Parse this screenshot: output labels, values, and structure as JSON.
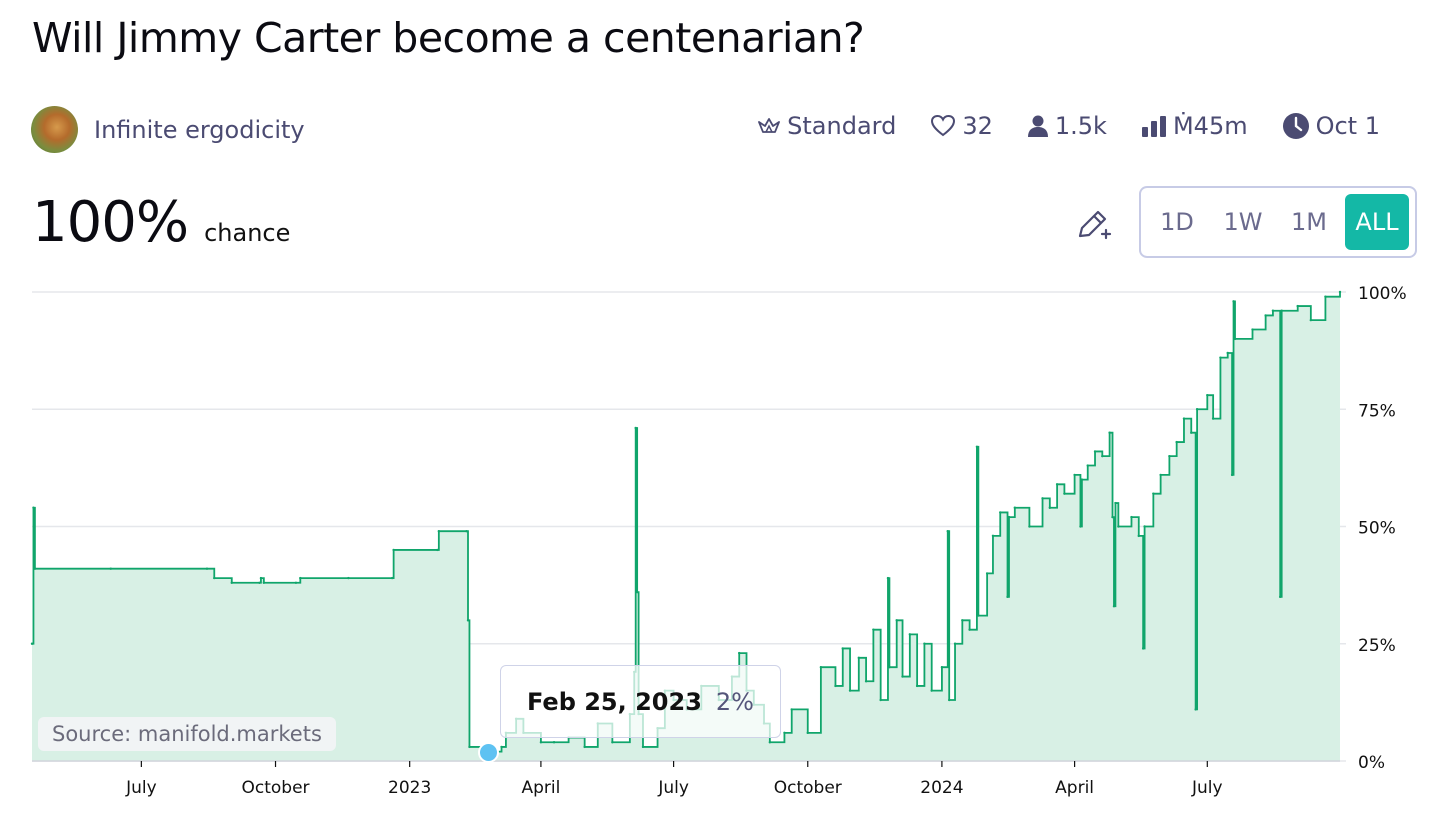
{
  "title": "Will Jimmy Carter become a centenarian?",
  "creator": {
    "name": "Infinite ergodicity",
    "avatar_icon": "dog-avatar"
  },
  "stats": {
    "market_type": "Standard",
    "likes": "32",
    "traders": "1.5k",
    "volume": "Ṁ45m",
    "close_date": "Oct 1"
  },
  "probability": {
    "value": "100%",
    "label": "chance"
  },
  "time_ranges": [
    "1D",
    "1W",
    "1M",
    "ALL"
  ],
  "active_range": "ALL",
  "source": "Source: manifold.markets",
  "tooltip": {
    "date": "Feb 25, 2023",
    "value": "2%"
  },
  "colors": {
    "line": "#10a56b",
    "fill": "#d8f0e5",
    "accent": "#14b8a6",
    "hover_dot": "#5ec2f2",
    "grid": "#e5e7eb"
  },
  "chart_data": {
    "type": "area",
    "x_unit": "date",
    "x_range": [
      "2022-04-17",
      "2024-09-30"
    ],
    "ylim": [
      0,
      100
    ],
    "y_ticks": [
      0,
      25,
      50,
      75,
      100
    ],
    "y_tick_labels": [
      "0%",
      "25%",
      "50%",
      "75%",
      "100%"
    ],
    "x_ticks": [
      {
        "label": "July",
        "date": "2022-07-01"
      },
      {
        "label": "October",
        "date": "2022-10-01"
      },
      {
        "label": "2023",
        "date": "2023-01-01"
      },
      {
        "label": "April",
        "date": "2023-04-01"
      },
      {
        "label": "July",
        "date": "2023-07-01"
      },
      {
        "label": "October",
        "date": "2023-10-01"
      },
      {
        "label": "2024",
        "date": "2024-01-01"
      },
      {
        "label": "April",
        "date": "2024-04-01"
      },
      {
        "label": "July",
        "date": "2024-07-01"
      }
    ],
    "grid": true,
    "step": true,
    "points": [
      [
        "2022-04-17",
        25
      ],
      [
        "2022-04-18",
        54
      ],
      [
        "2022-04-19",
        41
      ],
      [
        "2022-06-10",
        41
      ],
      [
        "2022-08-15",
        41
      ],
      [
        "2022-08-20",
        39
      ],
      [
        "2022-09-01",
        38
      ],
      [
        "2022-09-20",
        38
      ],
      [
        "2022-09-21",
        39
      ],
      [
        "2022-09-23",
        38
      ],
      [
        "2022-10-15",
        38
      ],
      [
        "2022-10-18",
        39
      ],
      [
        "2022-11-20",
        39
      ],
      [
        "2022-12-20",
        39
      ],
      [
        "2022-12-21",
        45
      ],
      [
        "2023-01-20",
        45
      ],
      [
        "2023-01-21",
        49
      ],
      [
        "2023-02-09",
        49
      ],
      [
        "2023-02-10",
        30
      ],
      [
        "2023-02-11",
        3
      ],
      [
        "2023-02-25",
        2
      ],
      [
        "2023-03-05",
        3
      ],
      [
        "2023-03-08",
        6
      ],
      [
        "2023-03-15",
        9
      ],
      [
        "2023-03-20",
        6
      ],
      [
        "2023-04-01",
        4
      ],
      [
        "2023-04-10",
        4
      ],
      [
        "2023-04-20",
        5
      ],
      [
        "2023-05-01",
        3
      ],
      [
        "2023-05-10",
        8
      ],
      [
        "2023-05-20",
        4
      ],
      [
        "2023-06-01",
        10
      ],
      [
        "2023-06-04",
        19
      ],
      [
        "2023-06-05",
        71
      ],
      [
        "2023-06-06",
        36
      ],
      [
        "2023-06-07",
        10
      ],
      [
        "2023-06-10",
        3
      ],
      [
        "2023-06-20",
        7
      ],
      [
        "2023-06-25",
        15
      ],
      [
        "2023-07-01",
        13
      ],
      [
        "2023-07-10",
        11
      ],
      [
        "2023-07-20",
        16
      ],
      [
        "2023-08-01",
        13
      ],
      [
        "2023-08-10",
        18
      ],
      [
        "2023-08-15",
        23
      ],
      [
        "2023-08-20",
        15
      ],
      [
        "2023-08-25",
        12
      ],
      [
        "2023-09-01",
        8
      ],
      [
        "2023-09-05",
        4
      ],
      [
        "2023-09-15",
        6
      ],
      [
        "2023-09-20",
        11
      ],
      [
        "2023-10-01",
        6
      ],
      [
        "2023-10-10",
        20
      ],
      [
        "2023-10-20",
        16
      ],
      [
        "2023-10-25",
        24
      ],
      [
        "2023-10-30",
        15
      ],
      [
        "2023-11-05",
        22
      ],
      [
        "2023-11-10",
        17
      ],
      [
        "2023-11-15",
        28
      ],
      [
        "2023-11-20",
        13
      ],
      [
        "2023-11-25",
        39
      ],
      [
        "2023-11-26",
        20
      ],
      [
        "2023-12-01",
        30
      ],
      [
        "2023-12-05",
        18
      ],
      [
        "2023-12-10",
        27
      ],
      [
        "2023-12-15",
        16
      ],
      [
        "2023-12-20",
        25
      ],
      [
        "2023-12-25",
        15
      ],
      [
        "2024-01-01",
        20
      ],
      [
        "2024-01-05",
        49
      ],
      [
        "2024-01-06",
        13
      ],
      [
        "2024-01-10",
        25
      ],
      [
        "2024-01-15",
        30
      ],
      [
        "2024-01-20",
        28
      ],
      [
        "2024-01-25",
        67
      ],
      [
        "2024-01-26",
        31
      ],
      [
        "2024-02-01",
        40
      ],
      [
        "2024-02-05",
        48
      ],
      [
        "2024-02-10",
        53
      ],
      [
        "2024-02-15",
        35
      ],
      [
        "2024-02-16",
        52
      ],
      [
        "2024-02-20",
        54
      ],
      [
        "2024-03-01",
        50
      ],
      [
        "2024-03-10",
        56
      ],
      [
        "2024-03-15",
        54
      ],
      [
        "2024-03-20",
        59
      ],
      [
        "2024-03-25",
        57
      ],
      [
        "2024-04-01",
        61
      ],
      [
        "2024-04-05",
        50
      ],
      [
        "2024-04-06",
        60
      ],
      [
        "2024-04-10",
        63
      ],
      [
        "2024-04-15",
        66
      ],
      [
        "2024-04-20",
        65
      ],
      [
        "2024-04-25",
        70
      ],
      [
        "2024-04-27",
        52
      ],
      [
        "2024-04-28",
        33
      ],
      [
        "2024-04-29",
        55
      ],
      [
        "2024-05-01",
        50
      ],
      [
        "2024-05-10",
        52
      ],
      [
        "2024-05-15",
        48
      ],
      [
        "2024-05-18",
        24
      ],
      [
        "2024-05-19",
        50
      ],
      [
        "2024-05-25",
        57
      ],
      [
        "2024-05-30",
        61
      ],
      [
        "2024-06-05",
        65
      ],
      [
        "2024-06-10",
        68
      ],
      [
        "2024-06-15",
        73
      ],
      [
        "2024-06-20",
        70
      ],
      [
        "2024-06-23",
        11
      ],
      [
        "2024-06-24",
        75
      ],
      [
        "2024-07-01",
        78
      ],
      [
        "2024-07-05",
        73
      ],
      [
        "2024-07-10",
        86
      ],
      [
        "2024-07-15",
        87
      ],
      [
        "2024-07-18",
        61
      ],
      [
        "2024-07-19",
        98
      ],
      [
        "2024-07-20",
        90
      ],
      [
        "2024-08-01",
        92
      ],
      [
        "2024-08-10",
        95
      ],
      [
        "2024-08-15",
        96
      ],
      [
        "2024-08-20",
        35
      ],
      [
        "2024-08-21",
        96
      ],
      [
        "2024-09-01",
        97
      ],
      [
        "2024-09-10",
        94
      ],
      [
        "2024-09-20",
        99
      ],
      [
        "2024-09-30",
        100
      ]
    ]
  }
}
